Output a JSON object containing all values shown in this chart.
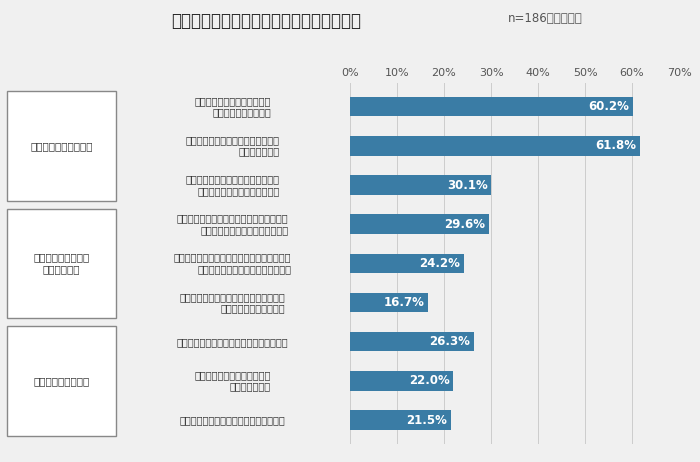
{
  "title": "【図】規制強化により生じる業務上の対応",
  "subtitle": "n=186／複数回答",
  "categories": [
    "ターゲティングできる対象が\n減少することへの対策",
    "ターゲット追跡による広告効果測定\nの難化への対策",
    "ターゲット情報の減少による広告の\n個別最適化の精度低下への対策",
    "個人情報取得・利用についてユーザーから\n明示的な同意を得る仕組みの整備",
    "ユーザーからの請求（情報の開示・利用停止\n・消去など）に対応する体制の整備",
    "外部企業とのデータ共有・データ移転の\nための体制・運用の整備",
    "規制に則ったプライバシーポリシーの整備",
    "規制に関する法律など情報の\nキャッチアップ",
    "情報管理体制・セキュリティ対策の整備"
  ],
  "values": [
    60.2,
    61.8,
    30.1,
    29.6,
    24.2,
    16.7,
    26.3,
    22.0,
    21.5
  ],
  "bar_color": "#3a7ca5",
  "background_color": "#f0f0f0",
  "group_labels": [
    "広告出稿に関する課題",
    "データの取得・管理\nに関する課題",
    "法的・技術的な課題"
  ],
  "group_bar_ranges": [
    [
      0,
      2
    ],
    [
      3,
      5
    ],
    [
      6,
      8
    ]
  ],
  "xlim": [
    0,
    70
  ],
  "xticks": [
    0,
    10,
    20,
    30,
    40,
    50,
    60,
    70
  ],
  "xtick_labels": [
    "0%",
    "10%",
    "20%",
    "30%",
    "40%",
    "50%",
    "60%",
    "70%"
  ]
}
